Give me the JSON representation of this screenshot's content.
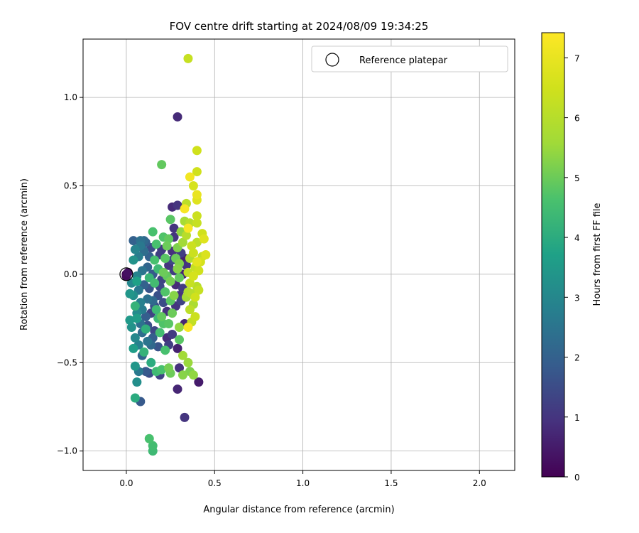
{
  "chart_data": {
    "type": "scatter",
    "title": "FOV centre drift starting at 2024/08/09 19:34:25",
    "xlabel": "Angular distance from reference (arcmin)",
    "ylabel": "Rotation from reference (arcmin)",
    "xlim": [
      -0.245,
      2.2
    ],
    "ylim": [
      -1.11,
      1.33
    ],
    "xticks": [
      "0.0",
      "0.5",
      "1.0",
      "1.5",
      "2.0"
    ],
    "yticks": [
      "1.0",
      "0.5",
      "0.0",
      "−0.5",
      "−1.0"
    ],
    "grid": true,
    "legend": {
      "position": "top-right",
      "entries": [
        "Reference platepar"
      ]
    },
    "colorbar": {
      "label": "Hours from first FF file",
      "range": [
        0,
        7.42
      ],
      "ticks": [
        "0",
        "1",
        "2",
        "3",
        "4",
        "5",
        "6",
        "7"
      ],
      "colormap": "viridis"
    },
    "reference_point": {
      "x": 0.0,
      "y": 0.0
    },
    "points": [
      [
        0.35,
        1.22,
        6.3
      ],
      [
        0.29,
        0.89,
        0.8
      ],
      [
        0.2,
        0.62,
        4.9
      ],
      [
        0.4,
        0.7,
        6.5
      ],
      [
        0.4,
        0.58,
        6.5
      ],
      [
        0.36,
        0.55,
        7.2
      ],
      [
        0.38,
        0.5,
        6.6
      ],
      [
        0.4,
        0.45,
        7.0
      ],
      [
        0.4,
        0.42,
        6.8
      ],
      [
        0.33,
        0.37,
        7.3
      ],
      [
        0.26,
        0.38,
        0.8
      ],
      [
        0.29,
        0.39,
        1.0
      ],
      [
        0.34,
        0.4,
        6.1
      ],
      [
        0.25,
        0.31,
        4.8
      ],
      [
        0.4,
        0.33,
        6.4
      ],
      [
        0.33,
        0.3,
        5.7
      ],
      [
        0.36,
        0.29,
        6.0
      ],
      [
        0.4,
        0.29,
        6.3
      ],
      [
        0.27,
        0.26,
        1.0
      ],
      [
        0.35,
        0.26,
        7.3
      ],
      [
        0.43,
        0.23,
        6.5
      ],
      [
        0.44,
        0.2,
        6.8
      ],
      [
        0.4,
        0.18,
        6.1
      ],
      [
        0.37,
        0.16,
        6.4
      ],
      [
        0.45,
        0.11,
        6.7
      ],
      [
        0.42,
        0.07,
        6.6
      ],
      [
        0.39,
        0.04,
        6.3
      ],
      [
        0.41,
        0.02,
        6.5
      ],
      [
        0.35,
        0.01,
        6.2
      ],
      [
        0.33,
        0.09,
        0.6
      ],
      [
        0.31,
        0.12,
        1.2
      ],
      [
        0.3,
        0.06,
        5.2
      ],
      [
        0.28,
        0.09,
        5.0
      ],
      [
        0.36,
        -0.05,
        6.3
      ],
      [
        0.4,
        -0.07,
        6.0
      ],
      [
        0.35,
        -0.1,
        5.9
      ],
      [
        0.32,
        -0.08,
        1.1
      ],
      [
        0.3,
        -0.12,
        0.9
      ],
      [
        0.38,
        -0.17,
        5.8
      ],
      [
        0.36,
        -0.2,
        6.1
      ],
      [
        0.39,
        -0.24,
        6.4
      ],
      [
        0.35,
        -0.3,
        7.3
      ],
      [
        0.33,
        -0.28,
        0.7
      ],
      [
        0.37,
        -0.27,
        6.2
      ],
      [
        0.3,
        -0.3,
        5.4
      ],
      [
        0.29,
        -0.42,
        0.6
      ],
      [
        0.3,
        -0.37,
        4.8
      ],
      [
        0.32,
        -0.46,
        5.6
      ],
      [
        0.35,
        -0.5,
        5.5
      ],
      [
        0.36,
        -0.55,
        5.2
      ],
      [
        0.38,
        -0.57,
        5.4
      ],
      [
        0.32,
        -0.57,
        5.3
      ],
      [
        0.3,
        -0.53,
        0.9
      ],
      [
        0.41,
        -0.61,
        0.5
      ],
      [
        0.29,
        -0.65,
        0.7
      ],
      [
        0.33,
        -0.81,
        1.0
      ],
      [
        0.25,
        -0.56,
        5.0
      ],
      [
        0.2,
        -0.54,
        4.6
      ],
      [
        0.24,
        -0.53,
        5.1
      ],
      [
        0.17,
        -0.55,
        4.4
      ],
      [
        0.19,
        -0.57,
        1.3
      ],
      [
        0.13,
        -0.93,
        4.6
      ],
      [
        0.15,
        -0.97,
        4.5
      ],
      [
        0.15,
        -1.0,
        4.4
      ],
      [
        0.08,
        -0.72,
        1.8
      ],
      [
        0.05,
        -0.7,
        4.0
      ],
      [
        0.06,
        -0.61,
        3.2
      ],
      [
        0.05,
        -0.52,
        3.4
      ],
      [
        0.07,
        -0.55,
        2.6
      ],
      [
        0.11,
        -0.55,
        1.8
      ],
      [
        0.13,
        -0.56,
        1.5
      ],
      [
        0.09,
        -0.46,
        2.1
      ],
      [
        0.14,
        -0.5,
        4.0
      ],
      [
        0.04,
        -0.42,
        3.6
      ],
      [
        0.07,
        -0.4,
        2.8
      ],
      [
        0.1,
        -0.44,
        4.2
      ],
      [
        0.12,
        -0.38,
        2.5
      ],
      [
        0.15,
        -0.36,
        1.9
      ],
      [
        0.05,
        -0.36,
        3.0
      ],
      [
        0.03,
        -0.3,
        3.3
      ],
      [
        0.08,
        -0.28,
        2.4
      ],
      [
        0.12,
        -0.29,
        1.6
      ],
      [
        0.16,
        -0.32,
        1.4
      ],
      [
        0.19,
        -0.33,
        4.5
      ],
      [
        0.21,
        -0.28,
        4.7
      ],
      [
        0.23,
        -0.36,
        0.8
      ],
      [
        0.26,
        -0.34,
        1.1
      ],
      [
        0.24,
        -0.4,
        1.2
      ],
      [
        0.22,
        -0.43,
        4.6
      ],
      [
        0.18,
        -0.41,
        1.7
      ],
      [
        0.02,
        -0.26,
        3.5
      ],
      [
        0.06,
        -0.22,
        3.1
      ],
      [
        0.09,
        -0.2,
        2.7
      ],
      [
        0.11,
        -0.24,
        1.9
      ],
      [
        0.14,
        -0.22,
        1.3
      ],
      [
        0.17,
        -0.2,
        4.4
      ],
      [
        0.2,
        -0.24,
        4.9
      ],
      [
        0.23,
        -0.21,
        0.9
      ],
      [
        0.26,
        -0.22,
        5.0
      ],
      [
        0.28,
        -0.18,
        1.0
      ],
      [
        0.25,
        -0.15,
        4.8
      ],
      [
        0.21,
        -0.16,
        1.5
      ],
      [
        0.18,
        -0.12,
        1.6
      ],
      [
        0.15,
        -0.15,
        2.2
      ],
      [
        0.12,
        -0.14,
        2.4
      ],
      [
        0.08,
        -0.16,
        2.8
      ],
      [
        0.05,
        -0.18,
        4.2
      ],
      [
        0.04,
        -0.12,
        3.2
      ],
      [
        0.07,
        -0.09,
        2.6
      ],
      [
        0.1,
        -0.06,
        2.0
      ],
      [
        0.13,
        -0.08,
        1.7
      ],
      [
        0.16,
        -0.05,
        4.5
      ],
      [
        0.19,
        -0.07,
        1.4
      ],
      [
        0.22,
        -0.1,
        4.7
      ],
      [
        0.25,
        -0.04,
        5.1
      ],
      [
        0.28,
        -0.06,
        0.8
      ],
      [
        0.3,
        -0.02,
        4.9
      ],
      [
        0.27,
        0.02,
        1.2
      ],
      [
        0.02,
        -0.11,
        3.4
      ],
      [
        0.03,
        -0.05,
        3.0
      ],
      [
        0.06,
        -0.01,
        2.9
      ],
      [
        0.09,
        0.02,
        2.5
      ],
      [
        0.12,
        0.04,
        2.1
      ],
      [
        0.15,
        0.0,
        1.8
      ],
      [
        0.18,
        0.03,
        4.4
      ],
      [
        0.21,
        0.01,
        5.0
      ],
      [
        0.24,
        0.05,
        1.0
      ],
      [
        0.22,
        0.09,
        4.8
      ],
      [
        0.19,
        0.11,
        1.2
      ],
      [
        0.16,
        0.08,
        4.6
      ],
      [
        0.13,
        0.1,
        2.0
      ],
      [
        0.1,
        0.13,
        2.3
      ],
      [
        0.07,
        0.1,
        2.7
      ],
      [
        0.04,
        0.08,
        3.3
      ],
      [
        0.05,
        0.14,
        2.9
      ],
      [
        0.08,
        0.16,
        2.6
      ],
      [
        0.11,
        0.18,
        1.9
      ],
      [
        0.14,
        0.15,
        1.5
      ],
      [
        0.17,
        0.17,
        4.6
      ],
      [
        0.2,
        0.14,
        1.1
      ],
      [
        0.23,
        0.16,
        5.0
      ],
      [
        0.26,
        0.13,
        0.9
      ],
      [
        0.29,
        0.15,
        5.2
      ],
      [
        0.32,
        0.18,
        5.6
      ],
      [
        0.34,
        0.22,
        6.0
      ],
      [
        0.31,
        0.24,
        5.4
      ],
      [
        0.27,
        0.21,
        1.0
      ],
      [
        0.24,
        0.2,
        4.9
      ],
      [
        0.21,
        0.21,
        4.7
      ],
      [
        0.15,
        0.24,
        4.6
      ],
      [
        0.1,
        0.19,
        2.2
      ],
      [
        0.04,
        0.19,
        2.0
      ],
      [
        0.08,
        0.19,
        2.4
      ],
      [
        0.0,
        0.0,
        0.1
      ],
      [
        0.0,
        -0.01,
        0.2
      ],
      [
        0.01,
        0.01,
        0.3
      ],
      [
        0.06,
        -0.04,
        3.7
      ],
      [
        0.13,
        -0.02,
        4.3
      ],
      [
        0.16,
        -0.18,
        1.6
      ],
      [
        0.09,
        -0.33,
        2.3
      ],
      [
        0.06,
        -0.25,
        3.6
      ],
      [
        0.11,
        -0.31,
        4.1
      ],
      [
        0.14,
        -0.4,
        2.2
      ],
      [
        0.18,
        -0.25,
        4.4
      ],
      [
        0.24,
        -0.28,
        4.8
      ],
      [
        0.27,
        -0.12,
        5.3
      ],
      [
        0.31,
        -0.15,
        1.3
      ],
      [
        0.34,
        -0.13,
        5.7
      ],
      [
        0.37,
        -0.11,
        6.0
      ],
      [
        0.39,
        -0.13,
        6.5
      ],
      [
        0.41,
        -0.09,
        6.3
      ],
      [
        0.38,
        -0.01,
        6.6
      ],
      [
        0.4,
        0.07,
        6.9
      ],
      [
        0.43,
        0.1,
        6.2
      ],
      [
        0.38,
        0.12,
        6.4
      ],
      [
        0.36,
        0.09,
        5.9
      ],
      [
        0.34,
        0.05,
        1.0
      ],
      [
        0.32,
        0.0,
        0.7
      ],
      [
        0.29,
        0.03,
        5.3
      ],
      [
        0.26,
        0.08,
        1.4
      ],
      [
        0.23,
        -0.01,
        4.9
      ],
      [
        0.2,
        -0.03,
        1.3
      ]
    ]
  }
}
